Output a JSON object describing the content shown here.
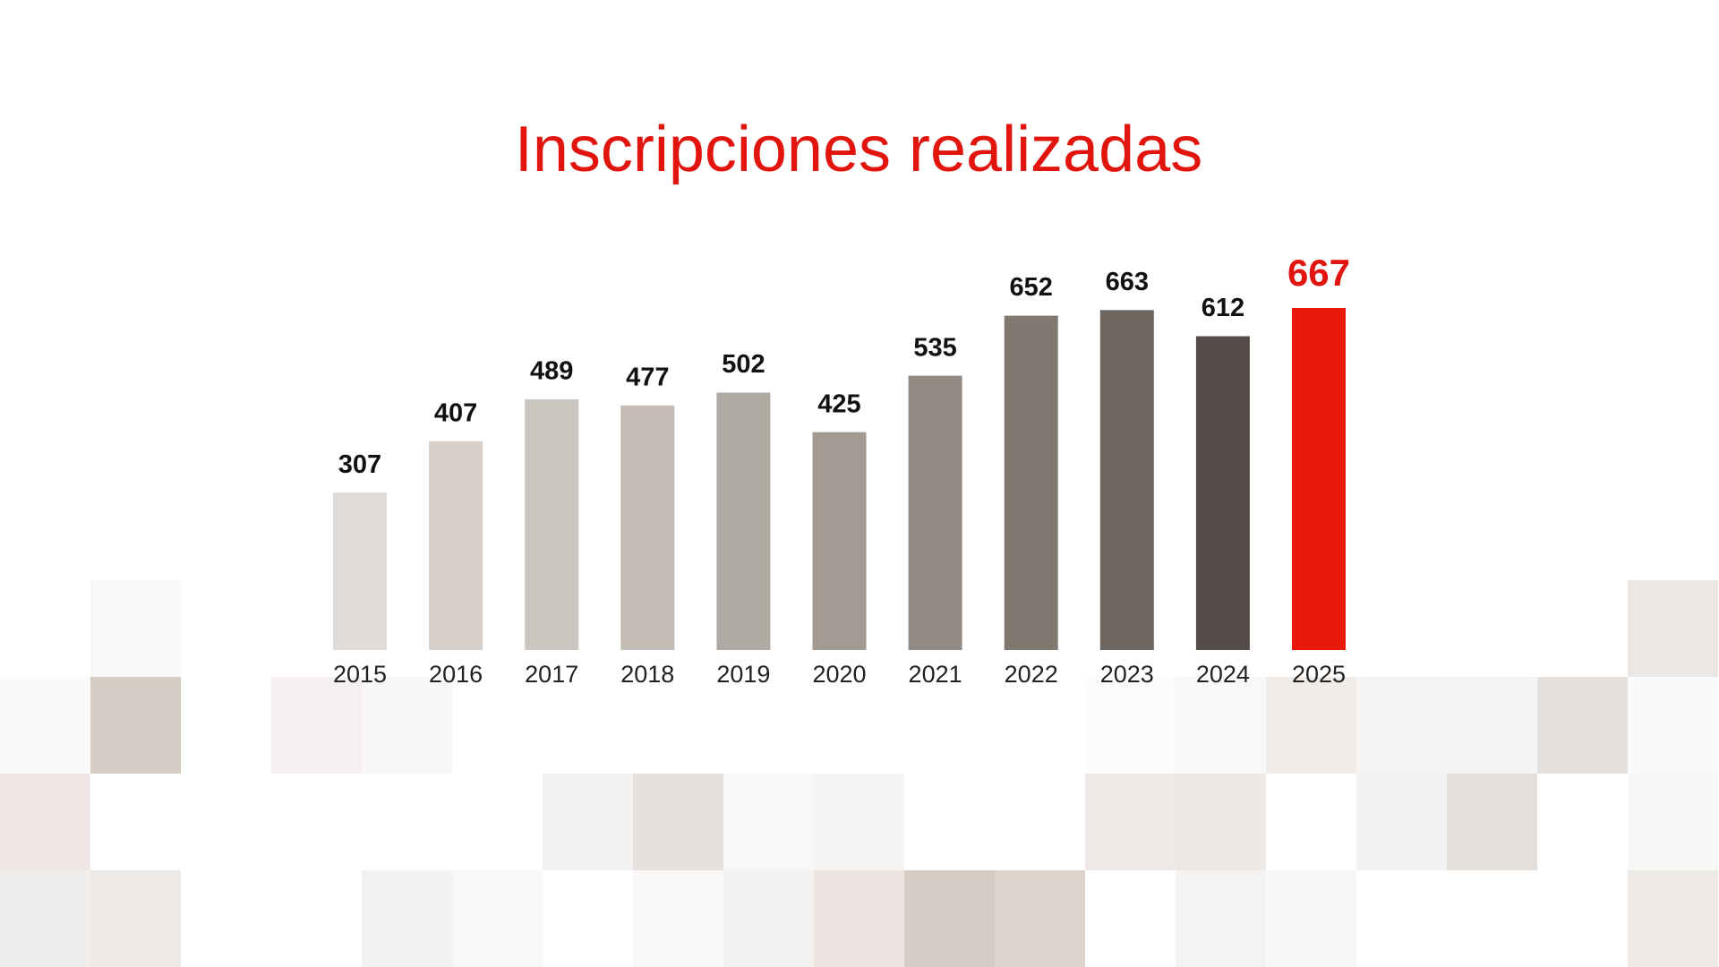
{
  "chart_data": {
    "type": "bar",
    "title": "Inscripciones realizadas",
    "categories": [
      "2015",
      "2016",
      "2017",
      "2018",
      "2019",
      "2020",
      "2021",
      "2022",
      "2023",
      "2024",
      "2025"
    ],
    "values": [
      307,
      407,
      489,
      477,
      502,
      425,
      535,
      652,
      663,
      612,
      667
    ],
    "colors": [
      "#dedbd8",
      "#d6cfca",
      "#cbc7c0",
      "#c4bdb5",
      "#b0aaa5",
      "#a39a92",
      "#928a84",
      "#81786f",
      "#6e6660",
      "#554d4a",
      "#e8190a"
    ],
    "value_label_colors": [
      "#111111",
      "#111111",
      "#111111",
      "#111111",
      "#111111",
      "#111111",
      "#111111",
      "#111111",
      "#111111",
      "#111111",
      "#e2140e"
    ]
  }
}
